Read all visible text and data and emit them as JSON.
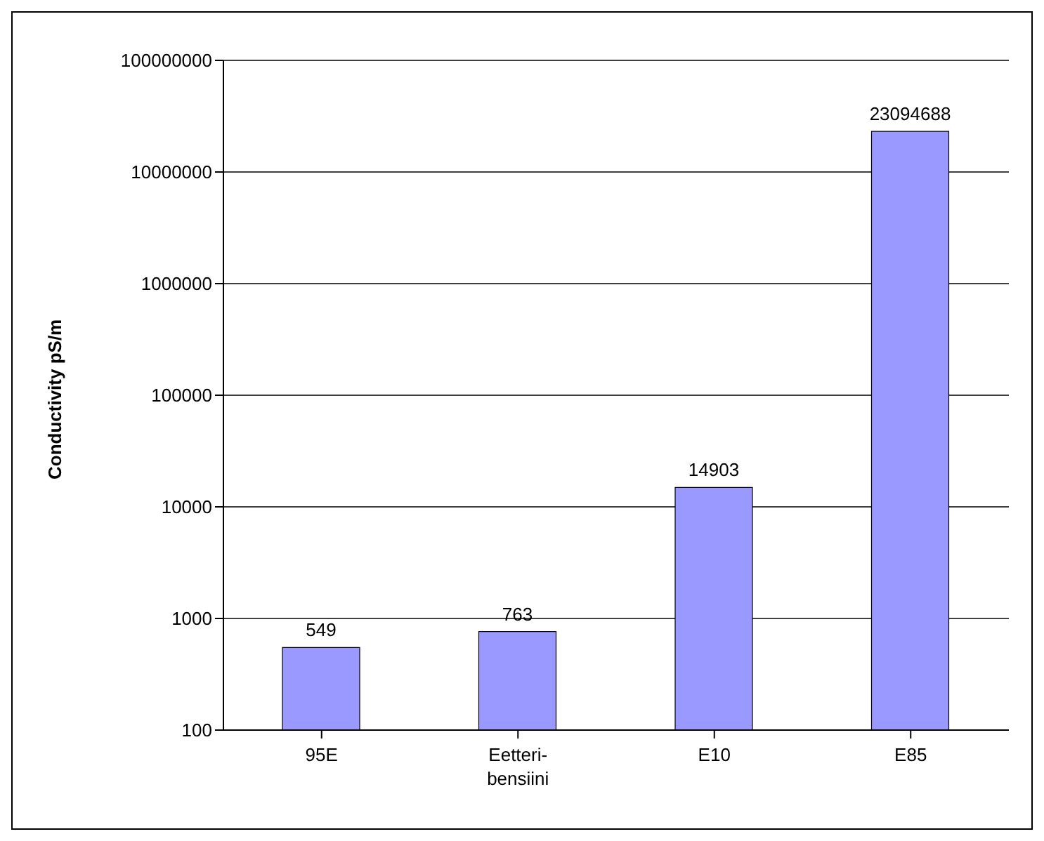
{
  "chart_data": {
    "type": "bar",
    "ylabel": "Conductivity pS/m",
    "categories": [
      "95E",
      "Eetteri-bensiini",
      "E10",
      "E85"
    ],
    "values": [
      549,
      763,
      14903,
      23094688
    ],
    "color": "#9999ff",
    "log": true,
    "ylim": [
      100,
      100000000
    ],
    "yticks": [
      100,
      1000,
      10000,
      100000,
      1000000,
      10000000,
      100000000
    ],
    "grid": "y",
    "data_labels": true,
    "legend": false
  }
}
